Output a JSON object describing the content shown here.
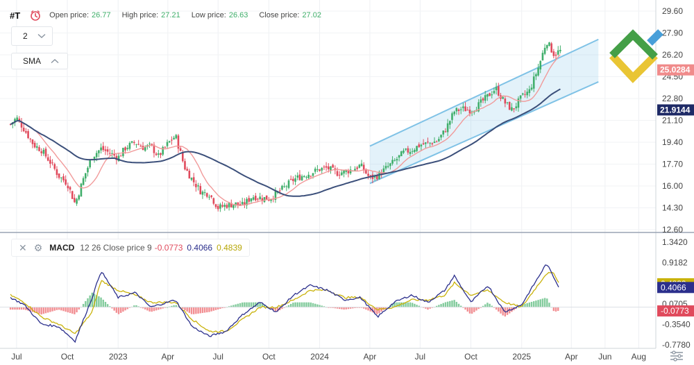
{
  "header": {
    "symbol": "#T",
    "open_label": "Open price:",
    "open_value": "26.77",
    "high_label": "High price:",
    "high_value": "27.21",
    "low_label": "Low price:",
    "low_value": "26.63",
    "close_label": "Close price:",
    "close_value": "27.02"
  },
  "controls": {
    "period": "2",
    "indicator": "SMA"
  },
  "macd_legend": {
    "name": "MACD",
    "params": "12 26 Close price 9",
    "hist": "-0.0773",
    "macd": "0.4066",
    "signal": "0.4839"
  },
  "colors": {
    "up": "#3fae6a",
    "down": "#e04a5c",
    "sma_fast": "#f19a9a",
    "sma_slow": "#3b4f7a",
    "channel": "#7fc2e6",
    "macd_line": "#2b2f8c",
    "signal_line": "#c9b20a"
  },
  "chart_data": [
    {
      "type": "candlestick",
      "title": "",
      "x_ticks": [
        "Jul",
        "Oct",
        "2023",
        "Apr",
        "Jul",
        "Oct",
        "2024",
        "Apr",
        "Jul",
        "Oct",
        "2025",
        "Apr",
        "Jun",
        "Aug"
      ],
      "y_ticks": [
        "29.60",
        "27.90",
        "26.20",
        "24.50",
        "22.80",
        "21.10",
        "19.40",
        "17.70",
        "16.00",
        "14.30",
        "12.60"
      ],
      "ylim": [
        12.6,
        29.6
      ],
      "price_markers": [
        {
          "value": "25.0284",
          "series": "SMA fast"
        },
        {
          "value": "21.9144",
          "series": "SMA slow"
        }
      ],
      "close_series_approx": [
        [
          "2022-06-20",
          20.8
        ],
        [
          "2022-07-01",
          21.3
        ],
        [
          "2022-07-15",
          20.4
        ],
        [
          "2022-08-01",
          19.2
        ],
        [
          "2022-08-15",
          18.8
        ],
        [
          "2022-09-01",
          17.8
        ],
        [
          "2022-09-15",
          16.8
        ],
        [
          "2022-10-01",
          16.2
        ],
        [
          "2022-10-15",
          14.6
        ],
        [
          "2022-11-01",
          16.8
        ],
        [
          "2022-11-15",
          18.3
        ],
        [
          "2022-12-01",
          18.9
        ],
        [
          "2022-12-15",
          18.6
        ],
        [
          "2023-01-01",
          18.2
        ],
        [
          "2023-01-15",
          19.0
        ],
        [
          "2023-02-01",
          19.4
        ],
        [
          "2023-02-15",
          19.0
        ],
        [
          "2023-03-01",
          19.1
        ],
        [
          "2023-03-15",
          18.3
        ],
        [
          "2023-04-01",
          19.3
        ],
        [
          "2023-04-15",
          19.9
        ],
        [
          "2023-05-01",
          17.5
        ],
        [
          "2023-05-15",
          16.5
        ],
        [
          "2023-06-01",
          15.5
        ],
        [
          "2023-06-15",
          15.4
        ],
        [
          "2023-07-01",
          14.3
        ],
        [
          "2023-07-15",
          14.5
        ],
        [
          "2023-08-01",
          14.6
        ],
        [
          "2023-08-15",
          14.5
        ],
        [
          "2023-09-01",
          15.2
        ],
        [
          "2023-09-15",
          15.1
        ],
        [
          "2023-10-01",
          15.0
        ],
        [
          "2023-10-15",
          15.4
        ],
        [
          "2023-11-01",
          16.0
        ],
        [
          "2023-11-15",
          16.5
        ],
        [
          "2023-12-01",
          16.8
        ],
        [
          "2023-12-15",
          17.0
        ],
        [
          "2024-01-01",
          17.3
        ],
        [
          "2024-01-15",
          17.4
        ],
        [
          "2024-02-01",
          17.0
        ],
        [
          "2024-02-15",
          17.1
        ],
        [
          "2024-03-01",
          17.3
        ],
        [
          "2024-03-15",
          17.6
        ],
        [
          "2024-04-01",
          16.6
        ],
        [
          "2024-04-15",
          16.8
        ],
        [
          "2024-05-01",
          17.4
        ],
        [
          "2024-05-15",
          17.9
        ],
        [
          "2024-06-01",
          18.6
        ],
        [
          "2024-06-15",
          18.8
        ],
        [
          "2024-07-01",
          19.2
        ],
        [
          "2024-07-15",
          19.3
        ],
        [
          "2024-08-01",
          19.5
        ],
        [
          "2024-08-15",
          20.3
        ],
        [
          "2024-09-01",
          21.8
        ],
        [
          "2024-09-15",
          22.0
        ],
        [
          "2024-10-01",
          21.9
        ],
        [
          "2024-10-15",
          22.3
        ],
        [
          "2024-11-01",
          23.0
        ],
        [
          "2024-11-15",
          23.6
        ],
        [
          "2024-12-01",
          22.5
        ],
        [
          "2024-12-15",
          21.9
        ],
        [
          "2025-01-01",
          22.9
        ],
        [
          "2025-01-15",
          23.4
        ],
        [
          "2025-02-01",
          25.3
        ],
        [
          "2025-02-15",
          27.3
        ],
        [
          "2025-03-01",
          26.2
        ],
        [
          "2025-03-10",
          26.5
        ]
      ]
    },
    {
      "type": "line",
      "title": "MACD",
      "y_ticks": [
        "1.3420",
        "0.9182",
        "0.4944",
        "0.0705",
        "-0.3540",
        "-0.7780"
      ],
      "ylim": [
        -0.778,
        1.342
      ],
      "series": [
        {
          "name": "MACD",
          "values_approx": [
            [
              "2022-06-20",
              0.2
            ],
            [
              "2022-07-15",
              0.05
            ],
            [
              "2022-08-15",
              -0.35
            ],
            [
              "2022-09-15",
              -0.4
            ],
            [
              "2022-10-15",
              -0.7
            ],
            [
              "2022-11-15",
              0.2
            ],
            [
              "2022-12-01",
              0.75
            ],
            [
              "2023-01-01",
              0.2
            ],
            [
              "2023-02-01",
              0.3
            ],
            [
              "2023-03-01",
              0.0
            ],
            [
              "2023-04-15",
              0.15
            ],
            [
              "2023-05-15",
              -0.4
            ],
            [
              "2023-06-15",
              -0.6
            ],
            [
              "2023-07-15",
              -0.5
            ],
            [
              "2023-08-15",
              -0.15
            ],
            [
              "2023-09-15",
              0.1
            ],
            [
              "2023-10-15",
              -0.1
            ],
            [
              "2023-11-15",
              0.25
            ],
            [
              "2023-12-15",
              0.45
            ],
            [
              "2024-01-15",
              0.35
            ],
            [
              "2024-02-15",
              0.15
            ],
            [
              "2024-03-15",
              0.2
            ],
            [
              "2024-04-15",
              -0.2
            ],
            [
              "2024-05-15",
              0.1
            ],
            [
              "2024-06-15",
              0.25
            ],
            [
              "2024-07-15",
              0.1
            ],
            [
              "2024-08-15",
              0.35
            ],
            [
              "2024-09-01",
              0.65
            ],
            [
              "2024-10-01",
              0.1
            ],
            [
              "2024-11-01",
              0.45
            ],
            [
              "2024-12-01",
              -0.1
            ],
            [
              "2025-01-01",
              0.05
            ],
            [
              "2025-02-15",
              0.9
            ],
            [
              "2025-03-01",
              0.6
            ],
            [
              "2025-03-10",
              0.41
            ]
          ]
        },
        {
          "name": "Signal",
          "values_approx": [
            [
              "2022-06-20",
              0.25
            ],
            [
              "2022-07-15",
              0.1
            ],
            [
              "2022-08-15",
              -0.2
            ],
            [
              "2022-09-15",
              -0.35
            ],
            [
              "2022-10-15",
              -0.55
            ],
            [
              "2022-11-15",
              -0.1
            ],
            [
              "2022-12-01",
              0.55
            ],
            [
              "2023-01-01",
              0.35
            ],
            [
              "2023-02-01",
              0.25
            ],
            [
              "2023-03-01",
              0.1
            ],
            [
              "2023-04-15",
              0.1
            ],
            [
              "2023-05-15",
              -0.25
            ],
            [
              "2023-06-15",
              -0.5
            ],
            [
              "2023-07-15",
              -0.5
            ],
            [
              "2023-08-15",
              -0.25
            ],
            [
              "2023-09-15",
              0.0
            ],
            [
              "2023-10-15",
              0.0
            ],
            [
              "2023-11-15",
              0.15
            ],
            [
              "2023-12-15",
              0.35
            ],
            [
              "2024-01-15",
              0.35
            ],
            [
              "2024-02-15",
              0.2
            ],
            [
              "2024-03-15",
              0.2
            ],
            [
              "2024-04-15",
              -0.05
            ],
            [
              "2024-05-15",
              0.0
            ],
            [
              "2024-06-15",
              0.15
            ],
            [
              "2024-07-15",
              0.15
            ],
            [
              "2024-08-15",
              0.25
            ],
            [
              "2024-09-01",
              0.5
            ],
            [
              "2024-10-01",
              0.25
            ],
            [
              "2024-11-01",
              0.35
            ],
            [
              "2024-12-01",
              0.1
            ],
            [
              "2025-01-01",
              0.0
            ],
            [
              "2025-02-15",
              0.7
            ],
            [
              "2025-03-01",
              0.7
            ],
            [
              "2025-03-10",
              0.48
            ]
          ]
        }
      ]
    }
  ]
}
